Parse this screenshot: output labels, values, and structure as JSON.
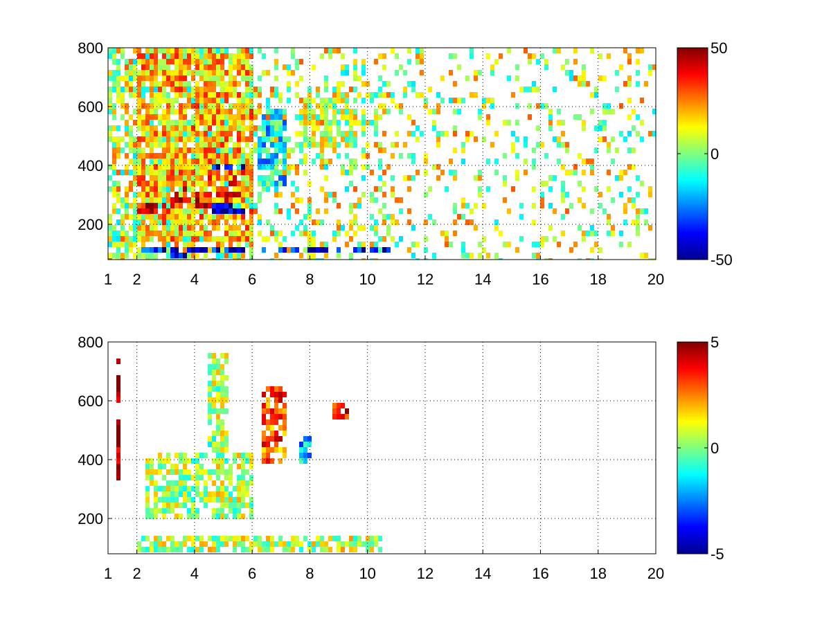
{
  "chart_data": [
    {
      "type": "heatmap",
      "title": "",
      "xlabel": "",
      "ylabel": "",
      "xlim": [
        1,
        20
      ],
      "ylim": [
        80,
        800
      ],
      "x_ticks": [
        1,
        2,
        4,
        6,
        8,
        10,
        12,
        14,
        16,
        18,
        20
      ],
      "y_ticks": [
        200,
        400,
        600,
        800
      ],
      "grid": true,
      "colormap": "jet",
      "clim": [
        -50,
        50
      ],
      "colorbar": {
        "ticks": [
          50,
          0,
          -50
        ],
        "placement": "right"
      },
      "features": [
        {
          "x": [
            2.0,
            3.2
          ],
          "y": [
            240,
            270
          ],
          "value": 40
        },
        {
          "x": [
            3.0,
            4.6
          ],
          "y": [
            260,
            330
          ],
          "value": 36
        },
        {
          "x": [
            4.3,
            5.8
          ],
          "y": [
            280,
            380
          ],
          "value": 28
        },
        {
          "x": [
            4.6,
            5.8
          ],
          "y": [
            240,
            400
          ],
          "value": -42
        },
        {
          "x": [
            6.2,
            7.2
          ],
          "y": [
            330,
            600
          ],
          "value": -14
        },
        {
          "x": [
            2.0,
            11.0
          ],
          "y": [
            95,
            130
          ],
          "value": -40
        },
        {
          "x": [
            3.0,
            3.8
          ],
          "y": [
            80,
            95
          ],
          "value": -45
        },
        {
          "x": [
            2.0,
            6.0
          ],
          "y": [
            150,
            800
          ],
          "value": 18
        },
        {
          "x": [
            7.8,
            9.6
          ],
          "y": [
            460,
            630
          ],
          "value": 6
        }
      ]
    },
    {
      "type": "heatmap",
      "title": "",
      "xlabel": "",
      "ylabel": "",
      "xlim": [
        1,
        20
      ],
      "ylim": [
        80,
        800
      ],
      "x_ticks": [
        1,
        2,
        4,
        6,
        8,
        10,
        12,
        14,
        16,
        18,
        20
      ],
      "y_ticks": [
        200,
        400,
        600,
        800
      ],
      "grid": true,
      "colormap": "jet",
      "clim": [
        -5,
        5
      ],
      "colorbar": {
        "ticks": [
          5,
          0,
          -5
        ],
        "placement": "right"
      },
      "features": [
        {
          "x": [
            2.3,
            6.0
          ],
          "y": [
            200,
            420
          ],
          "value": 0.4
        },
        {
          "x": [
            4.5,
            5.2
          ],
          "y": [
            200,
            760
          ],
          "value": 0.3
        },
        {
          "x": [
            2.0,
            10.5
          ],
          "y": [
            80,
            140
          ],
          "value": 0.6
        },
        {
          "x": [
            6.3,
            7.2
          ],
          "y": [
            380,
            650
          ],
          "value": 2.8
        },
        {
          "x": [
            8.8,
            9.3
          ],
          "y": [
            540,
            600
          ],
          "value": 3.6
        },
        {
          "x": [
            7.6,
            8.0
          ],
          "y": [
            390,
            480
          ],
          "value": -2.0
        },
        {
          "x": [
            1.35,
            1.45
          ],
          "y": [
            330,
            780
          ],
          "value": 5.0
        }
      ]
    }
  ]
}
